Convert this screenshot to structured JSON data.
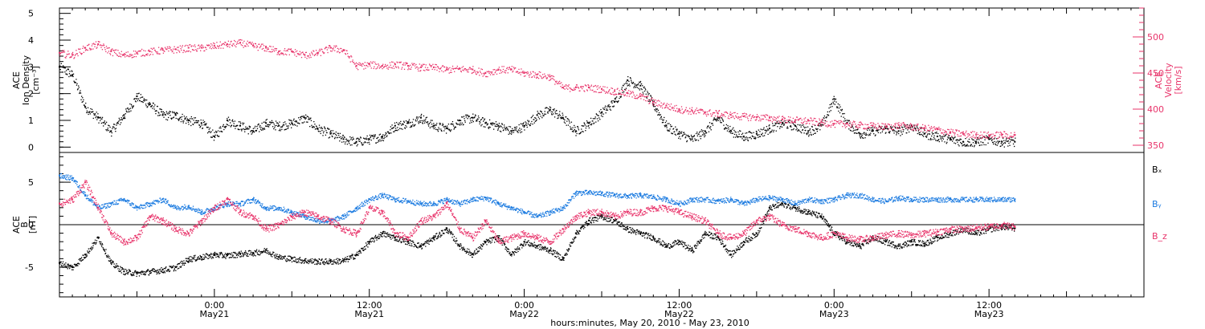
{
  "xlabel": "hours:minutes, May 20, 2010 - May 23, 2010",
  "x_ticks": [
    {
      "t": 6,
      "time": "0:00",
      "date": "May21"
    },
    {
      "t": 18,
      "time": "12:00",
      "date": "May21"
    },
    {
      "t": 30,
      "time": "0:00",
      "date": "May22"
    },
    {
      "t": 42,
      "time": "12:00",
      "date": "May22"
    },
    {
      "t": 54,
      "time": "0:00",
      "date": "May23"
    },
    {
      "t": 66,
      "time": "12:00",
      "date": "May23"
    }
  ],
  "colors": {
    "density": "#000000",
    "velocity": "#e8336a",
    "bx": "#000000",
    "by": "#1a7ae0",
    "bz": "#e8336a"
  },
  "chart_data": [
    {
      "type": "scatter",
      "title": "",
      "ylabel_left": [
        "ACE",
        "Ion Density",
        "[cm⁻³]"
      ],
      "ylabel_right": [
        "ACE",
        "Velocity",
        "[km/s]"
      ],
      "y_ticks_left": [
        "0",
        "1",
        "2",
        "3",
        "4",
        "5"
      ],
      "y_ticks_right": [
        "350",
        "400",
        "450",
        "500"
      ],
      "xlim": [
        -6,
        78
      ],
      "ylim_left": [
        -0.2,
        5.2
      ],
      "ylim_right": [
        340,
        540
      ],
      "series": [
        {
          "name": "",
          "axis": "left",
          "color": "#000000",
          "x": [
            -6,
            -5,
            -4,
            -3,
            -2,
            -1,
            0,
            1,
            2,
            3,
            4,
            5,
            6,
            7,
            8,
            9,
            10,
            11,
            12,
            13,
            14,
            15,
            16,
            17,
            18,
            19,
            20,
            21,
            22,
            23,
            24,
            25,
            26,
            27,
            28,
            29,
            30,
            31,
            32,
            33,
            34,
            35,
            36,
            37,
            38,
            39,
            40,
            41,
            42,
            43,
            44,
            45,
            46,
            47,
            48,
            49,
            50,
            51,
            52,
            53,
            54,
            55,
            56,
            57,
            58,
            59,
            60,
            61,
            62,
            63,
            64,
            65,
            66,
            67,
            68
          ],
          "y": [
            3.0,
            2.7,
            1.5,
            1.1,
            0.6,
            1.2,
            1.9,
            1.6,
            1.2,
            1.2,
            1.0,
            0.9,
            0.4,
            1.0,
            0.8,
            0.6,
            0.9,
            0.8,
            0.9,
            1.1,
            0.7,
            0.5,
            0.3,
            0.2,
            0.3,
            0.4,
            0.8,
            0.9,
            1.1,
            0.8,
            0.7,
            1.0,
            1.1,
            0.9,
            0.8,
            0.6,
            0.8,
            1.2,
            1.4,
            1.1,
            0.6,
            0.9,
            1.3,
            1.7,
            2.5,
            2.3,
            1.6,
            0.8,
            0.5,
            0.3,
            0.6,
            1.1,
            0.6,
            0.4,
            0.5,
            0.7,
            0.9,
            0.8,
            0.6,
            0.8,
            1.8,
            0.9,
            0.5,
            0.6,
            0.7,
            0.6,
            0.8,
            0.5,
            0.4,
            0.3,
            0.2,
            0.2,
            0.3,
            0.2,
            0.2
          ]
        },
        {
          "name": "",
          "axis": "right",
          "color": "#e8336a",
          "x": [
            -6,
            -5,
            -4,
            -3,
            -2,
            -1,
            0,
            1,
            2,
            3,
            4,
            5,
            6,
            7,
            8,
            9,
            10,
            11,
            12,
            13,
            14,
            15,
            16,
            17,
            18,
            19,
            20,
            21,
            22,
            23,
            24,
            25,
            26,
            27,
            28,
            29,
            30,
            31,
            32,
            33,
            34,
            35,
            36,
            37,
            38,
            39,
            40,
            41,
            42,
            43,
            44,
            45,
            46,
            47,
            48,
            49,
            50,
            51,
            52,
            53,
            54,
            55,
            56,
            57,
            58,
            59,
            60,
            61,
            62,
            63,
            64,
            65,
            66,
            67,
            68
          ],
          "y": [
            478,
            475,
            485,
            490,
            480,
            475,
            478,
            480,
            482,
            483,
            485,
            485,
            488,
            490,
            492,
            488,
            485,
            480,
            480,
            475,
            478,
            485,
            482,
            460,
            462,
            460,
            462,
            460,
            458,
            458,
            455,
            456,
            455,
            450,
            455,
            455,
            450,
            448,
            445,
            430,
            430,
            430,
            428,
            425,
            422,
            418,
            410,
            405,
            400,
            398,
            396,
            394,
            392,
            390,
            389,
            388,
            386,
            385,
            384,
            382,
            380,
            380,
            378,
            377,
            376,
            378,
            376,
            374,
            372,
            368,
            366,
            365,
            364,
            365,
            364
          ]
        }
      ]
    },
    {
      "type": "scatter",
      "title": "",
      "ylabel_left": [
        "ACE",
        "B",
        "[nT]"
      ],
      "y_ticks_left": [
        "-5",
        "0",
        "5"
      ],
      "xlim": [
        -6,
        78
      ],
      "ylim": [
        -8.5,
        8.5
      ],
      "legend": [
        "Bₓ",
        "Bᵧ",
        "B_z"
      ],
      "legend_placement": "right",
      "series": [
        {
          "name": "Bₓ",
          "color": "#000000",
          "x": [
            -6,
            -5,
            -4,
            -3,
            -2,
            -1,
            0,
            1,
            2,
            3,
            4,
            5,
            6,
            7,
            8,
            9,
            10,
            11,
            12,
            13,
            14,
            15,
            16,
            17,
            18,
            19,
            20,
            21,
            22,
            23,
            24,
            25,
            26,
            27,
            28,
            29,
            30,
            31,
            32,
            33,
            34,
            35,
            36,
            37,
            38,
            39,
            40,
            41,
            42,
            43,
            44,
            45,
            46,
            47,
            48,
            49,
            50,
            51,
            52,
            53,
            54,
            55,
            56,
            57,
            58,
            59,
            60,
            61,
            62,
            63,
            64,
            65,
            66,
            67,
            68
          ],
          "y": [
            -4.5,
            -5.0,
            -3.5,
            -1.5,
            -4.5,
            -5.5,
            -5.7,
            -5.5,
            -5.3,
            -5.0,
            -4.0,
            -3.8,
            -3.5,
            -3.6,
            -3.4,
            -3.3,
            -3.0,
            -3.8,
            -4.0,
            -4.2,
            -4.3,
            -4.3,
            -4.2,
            -3.5,
            -2.0,
            -1.0,
            -1.5,
            -2.0,
            -2.5,
            -1.5,
            -0.5,
            -2.5,
            -3.5,
            -2.0,
            -1.5,
            -3.5,
            -2.0,
            -2.5,
            -3.0,
            -4.0,
            -1.0,
            0.5,
            1.0,
            0.5,
            -0.5,
            -1.0,
            -1.5,
            -2.5,
            -2.0,
            -3.0,
            -1.0,
            -1.5,
            -3.5,
            -2.0,
            -1.0,
            2.0,
            2.5,
            2.0,
            1.5,
            1.0,
            -1.0,
            -2.0,
            -2.5,
            -1.5,
            -2.0,
            -2.5,
            -2.0,
            -2.2,
            -1.5,
            -1.0,
            -0.5,
            -1.0,
            -0.5,
            -0.2,
            -0.4
          ]
        },
        {
          "name": "Bᵧ",
          "color": "#1a7ae0",
          "x": [
            -6,
            -5,
            -4,
            -3,
            -2,
            -1,
            0,
            1,
            2,
            3,
            4,
            5,
            6,
            7,
            8,
            9,
            10,
            11,
            12,
            13,
            14,
            15,
            16,
            17,
            18,
            19,
            20,
            21,
            22,
            23,
            24,
            25,
            26,
            27,
            28,
            29,
            30,
            31,
            32,
            33,
            34,
            35,
            36,
            37,
            38,
            39,
            40,
            41,
            42,
            43,
            44,
            45,
            46,
            47,
            48,
            49,
            50,
            51,
            52,
            53,
            54,
            55,
            56,
            57,
            58,
            59,
            60,
            61,
            62,
            63,
            64,
            65,
            66,
            67,
            68
          ],
          "y": [
            5.8,
            5.5,
            3.5,
            2.0,
            2.5,
            3.0,
            2.0,
            2.5,
            3.0,
            2.0,
            2.2,
            1.5,
            2.0,
            2.5,
            2.5,
            3.0,
            2.0,
            2.0,
            1.5,
            1.0,
            0.5,
            0.5,
            1.0,
            2.0,
            3.0,
            3.5,
            3.0,
            2.8,
            2.5,
            2.5,
            3.0,
            2.5,
            3.0,
            3.2,
            2.5,
            2.0,
            1.5,
            1.0,
            1.5,
            2.0,
            3.8,
            3.8,
            3.7,
            3.5,
            3.4,
            3.5,
            3.3,
            3.0,
            2.5,
            3.0,
            3.0,
            2.8,
            3.0,
            2.5,
            3.0,
            3.2,
            3.0,
            2.5,
            3.0,
            2.8,
            3.0,
            3.5,
            3.5,
            3.0,
            2.8,
            3.2,
            3.0,
            3.0,
            3.0,
            3.0,
            3.0,
            3.0,
            3.0,
            3.0,
            3.0
          ]
        },
        {
          "name": "B_z",
          "color": "#e8336a",
          "x": [
            -6,
            -5,
            -4,
            -3,
            -2,
            -1,
            0,
            1,
            2,
            3,
            4,
            5,
            6,
            7,
            8,
            9,
            10,
            11,
            12,
            13,
            14,
            15,
            16,
            17,
            18,
            19,
            20,
            21,
            22,
            23,
            24,
            25,
            26,
            27,
            28,
            29,
            30,
            31,
            32,
            33,
            34,
            35,
            36,
            37,
            38,
            39,
            40,
            41,
            42,
            43,
            44,
            45,
            46,
            47,
            48,
            49,
            50,
            51,
            52,
            53,
            54,
            55,
            56,
            57,
            58,
            59,
            60,
            61,
            62,
            63,
            64,
            65,
            66,
            67,
            68
          ],
          "y": [
            2.5,
            3.0,
            5.0,
            2.0,
            -1.0,
            -2.0,
            -1.5,
            1.0,
            0.5,
            -0.5,
            -1.0,
            0.5,
            2.0,
            3.0,
            1.5,
            1.0,
            -0.5,
            0.0,
            1.0,
            1.5,
            1.0,
            0.5,
            -0.5,
            -1.0,
            2.0,
            1.5,
            -1.0,
            -1.5,
            0.5,
            1.0,
            2.5,
            -0.5,
            -1.5,
            0.5,
            -2.0,
            -1.5,
            -1.0,
            -1.5,
            -2.0,
            -0.5,
            1.0,
            1.5,
            1.5,
            1.0,
            1.5,
            1.5,
            2.0,
            2.0,
            1.5,
            1.0,
            0.5,
            -1.0,
            -1.5,
            -1.0,
            0.5,
            1.0,
            0.0,
            -0.5,
            -1.0,
            -1.5,
            -1.0,
            -1.5,
            -1.7,
            -1.5,
            -1.2,
            -1.0,
            -1.2,
            -1.0,
            -0.8,
            -0.5,
            -0.5,
            -0.3,
            -0.2,
            0.0,
            -0.2
          ]
        }
      ]
    }
  ]
}
